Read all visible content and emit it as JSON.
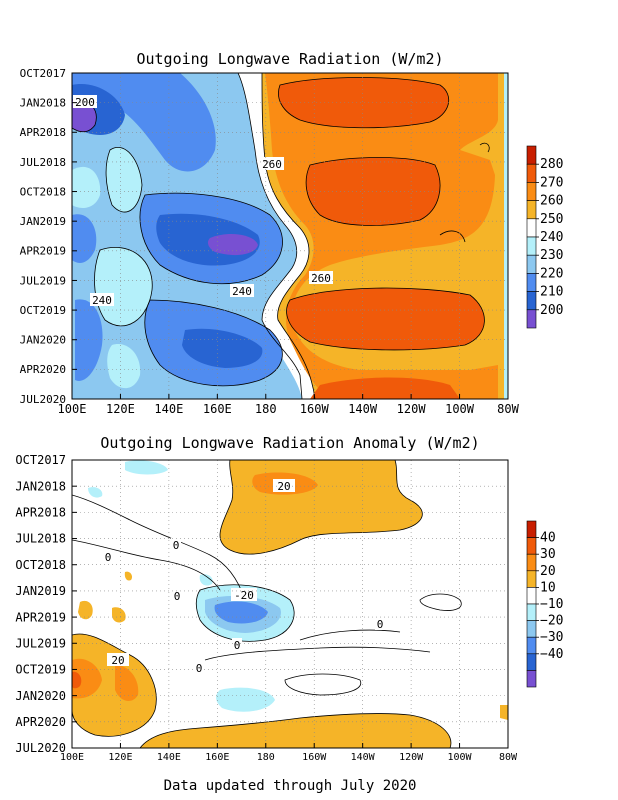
{
  "chart_data": [
    {
      "type": "heatmap",
      "title": "Outgoing Longwave Radiation (W/m2)",
      "xlabel": "",
      "ylabel": "",
      "x_ticks": [
        "100E",
        "120E",
        "140E",
        "160E",
        "180",
        "160W",
        "140W",
        "120W",
        "100W",
        "80W"
      ],
      "y_ticks": [
        "OCT2017",
        "JAN2018",
        "APR2018",
        "JUL2018",
        "OCT2018",
        "JAN2019",
        "APR2019",
        "JUL2019",
        "OCT2019",
        "JAN2020",
        "APR2020",
        "JUL2020"
      ],
      "colorbar": {
        "levels": [
          "280",
          "270",
          "260",
          "250",
          "240",
          "230",
          "220",
          "210",
          "200"
        ],
        "colors": [
          "#c81e00",
          "#f05a0a",
          "#fa8c14",
          "#f5b428",
          "#ffffff",
          "#b4f0fa",
          "#8cc8f0",
          "#508cf0",
          "#2864d2",
          "#7850d2"
        ]
      },
      "contour_labels": [
        "200",
        "260",
        "240",
        "240",
        "260"
      ],
      "description_values": {
        "west_pacific_range": [
          200,
          240
        ],
        "east_pacific_range": [
          250,
          270
        ]
      }
    },
    {
      "type": "heatmap",
      "title": "Outgoing Longwave Radiation Anomaly (W/m2)",
      "xlabel": "",
      "ylabel": "",
      "x_ticks": [
        "100E",
        "120E",
        "140E",
        "160E",
        "180",
        "160W",
        "140W",
        "120W",
        "100W",
        "80W"
      ],
      "y_ticks": [
        "OCT2017",
        "JAN2018",
        "APR2018",
        "JUL2018",
        "OCT2018",
        "JAN2019",
        "APR2019",
        "JUL2019",
        "OCT2019",
        "JAN2020",
        "APR2020",
        "JUL2020"
      ],
      "colorbar": {
        "levels": [
          "40",
          "30",
          "20",
          "10",
          "−10",
          "−20",
          "−30",
          "−40"
        ],
        "colors": [
          "#c81e00",
          "#f05a0a",
          "#fa8c14",
          "#f5b428",
          "#ffffff",
          "#b4f0fa",
          "#8cc8f0",
          "#508cf0",
          "#2864d2",
          "#7850d2"
        ]
      },
      "contour_labels": [
        "20",
        "0",
        "0",
        "0",
        "-20",
        "0",
        "20",
        "0",
        "0"
      ]
    }
  ],
  "footer": "Data updated through July 2020"
}
